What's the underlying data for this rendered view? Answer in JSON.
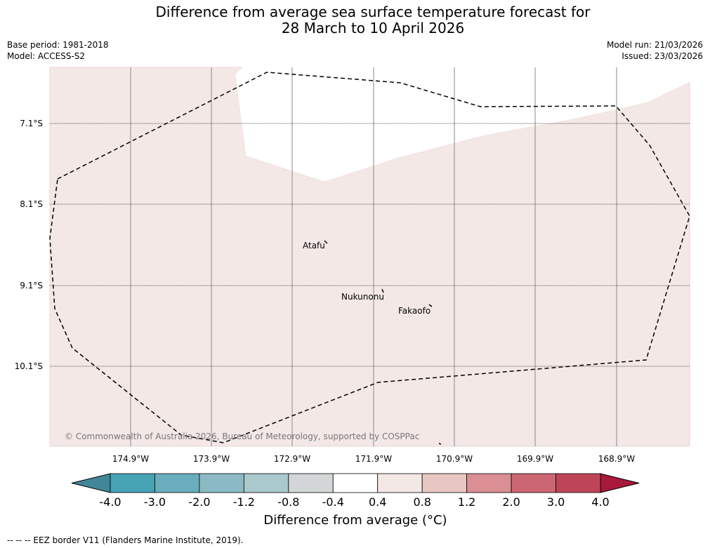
{
  "title": {
    "line1": "Difference from average sea surface temperature forecast for",
    "line2": "28 March to 10 April 2026"
  },
  "meta": {
    "base_period": "Base period: 1981-2018",
    "model": "Model: ACCESS-S2",
    "model_run": "Model run: 21/03/2026",
    "issued": "Issued: 23/03/2026"
  },
  "map": {
    "latitudes": [
      "7.1°S",
      "8.1°S",
      "9.1°S",
      "10.1°S"
    ],
    "longitudes": [
      "174.9°W",
      "173.9°W",
      "172.9°W",
      "171.9°W",
      "170.9°W",
      "169.9°W",
      "168.9°W"
    ],
    "places": [
      "Atafu",
      "Nukunonu",
      "Fakaofo"
    ],
    "copyright": "© Commonwealth of Australia 2026, Bureau of Meteorology, supported by COSPPac",
    "anomaly_fill_color": "#f4e8e7",
    "neutral_color": "#ffffff"
  },
  "colorbar": {
    "ticks": [
      "-4.0",
      "-3.0",
      "-2.0",
      "-1.2",
      "-0.8",
      "-0.4",
      "0.4",
      "0.8",
      "1.2",
      "2.0",
      "3.0",
      "4.0"
    ],
    "colors": [
      "#418799",
      "#45a3b4",
      "#6aaebd",
      "#8cbac4",
      "#a9c9cc",
      "#d3d6d7",
      "#ffffff",
      "#f4e8e7",
      "#e8c7c2",
      "#d98f94",
      "#cd6673",
      "#be4557",
      "#a8193a"
    ],
    "label": "Difference from average (°C)"
  },
  "footer": "--  --  -- EEZ border V11 (Flanders Marine Institute, 2019)."
}
